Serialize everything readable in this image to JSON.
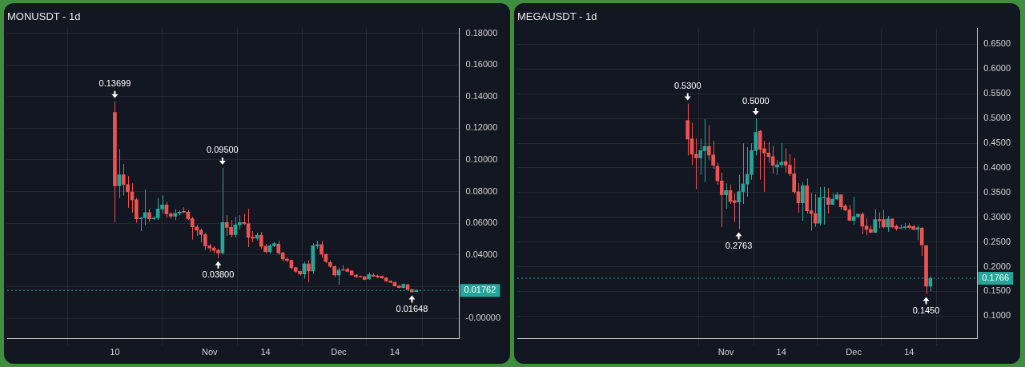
{
  "chart_data": [
    {
      "type": "candlestick",
      "title": "MONUSDT - 1d",
      "x": [
        "--10-10",
        "--10-11",
        "--10-12",
        "--10-13",
        "--10-14",
        "--10-15",
        "--10-16",
        "--10-17",
        "--10-18",
        "--10-19",
        "--10-20",
        "--10-21",
        "--10-22",
        "--10-23",
        "--10-24",
        "--10-25",
        "--10-26",
        "--10-27",
        "--10-28",
        "--10-29",
        "--10-30",
        "--10-31",
        "--11-01",
        "--11-02",
        "--11-03",
        "--11-04",
        "--11-05",
        "--11-06",
        "--11-07",
        "--11-08",
        "--11-09",
        "--11-10",
        "--11-11",
        "--11-12",
        "--11-13",
        "--11-14",
        "--11-15",
        "--11-16",
        "--11-17",
        "--11-18",
        "--11-19",
        "--11-20",
        "--11-21",
        "--11-22",
        "--11-23",
        "--11-24",
        "--11-25",
        "--11-26",
        "--11-27",
        "--11-28",
        "--11-29",
        "--11-30",
        "--12-01",
        "--12-02",
        "--12-03",
        "--12-04",
        "--12-05",
        "--12-06",
        "--12-07",
        "--12-08",
        "--12-09",
        "--12-10",
        "--12-11",
        "--12-12",
        "--12-13",
        "--12-14",
        "--12-15",
        "--12-16",
        "--12-17",
        "--12-18",
        "--12-19"
      ],
      "ohlc": [
        [
          0.13,
          0.13699,
          0.0605,
          0.0836
        ],
        [
          0.0836,
          0.1068,
          0.0759,
          0.0906
        ],
        [
          0.0906,
          0.0975,
          0.0775,
          0.0844
        ],
        [
          0.0844,
          0.0898,
          0.0698,
          0.0798
        ],
        [
          0.0798,
          0.0852,
          0.0667,
          0.0748
        ],
        [
          0.0748,
          0.076,
          0.0605,
          0.0628
        ],
        [
          0.0628,
          0.064,
          0.0551,
          0.0634
        ],
        [
          0.0634,
          0.0813,
          0.0589,
          0.0667
        ],
        [
          0.0667,
          0.069,
          0.061,
          0.0628
        ],
        [
          0.0628,
          0.0645,
          0.062,
          0.0634
        ],
        [
          0.0634,
          0.076,
          0.062,
          0.069
        ],
        [
          0.069,
          0.0775,
          0.066,
          0.0716
        ],
        [
          0.0716,
          0.0735,
          0.0636,
          0.0659
        ],
        [
          0.0659,
          0.067,
          0.063,
          0.0644
        ],
        [
          0.0644,
          0.069,
          0.062,
          0.0663
        ],
        [
          0.0663,
          0.068,
          0.065,
          0.067
        ],
        [
          0.0675,
          0.07,
          0.0665,
          0.067
        ],
        [
          0.067,
          0.068,
          0.062,
          0.0628
        ],
        [
          0.0628,
          0.064,
          0.0497,
          0.0577
        ],
        [
          0.0577,
          0.059,
          0.052,
          0.0556
        ],
        [
          0.0556,
          0.0565,
          0.048,
          0.0528
        ],
        [
          0.0528,
          0.054,
          0.043,
          0.0458
        ],
        [
          0.0458,
          0.047,
          0.042,
          0.0444
        ],
        [
          0.0444,
          0.0455,
          0.041,
          0.0429
        ],
        [
          0.0429,
          0.044,
          0.038,
          0.0412
        ],
        [
          0.0412,
          0.095,
          0.0402,
          0.0605
        ],
        [
          0.0605,
          0.065,
          0.052,
          0.0574
        ],
        [
          0.0574,
          0.062,
          0.051,
          0.0528
        ],
        [
          0.0528,
          0.064,
          0.051,
          0.059
        ],
        [
          0.059,
          0.065,
          0.056,
          0.0605
        ],
        [
          0.0605,
          0.066,
          0.059,
          0.0597
        ],
        [
          0.0597,
          0.069,
          0.045,
          0.0512
        ],
        [
          0.0512,
          0.055,
          0.048,
          0.0505
        ],
        [
          0.0505,
          0.054,
          0.049,
          0.0525
        ],
        [
          0.0525,
          0.0545,
          0.044,
          0.0455
        ],
        [
          0.0455,
          0.047,
          0.041,
          0.042
        ],
        [
          0.042,
          0.047,
          0.041,
          0.0458
        ],
        [
          0.0458,
          0.048,
          0.045,
          0.0472
        ],
        [
          0.0468,
          0.049,
          0.04,
          0.0412
        ],
        [
          0.0412,
          0.042,
          0.036,
          0.0374
        ],
        [
          0.0374,
          0.0385,
          0.0355,
          0.0366
        ],
        [
          0.0366,
          0.037,
          0.031,
          0.0319
        ],
        [
          0.0319,
          0.0325,
          0.029,
          0.0296
        ],
        [
          0.0296,
          0.03,
          0.027,
          0.0279
        ],
        [
          0.0279,
          0.0358,
          0.025,
          0.0343
        ],
        [
          0.0343,
          0.0366,
          0.0227,
          0.0299
        ],
        [
          0.0299,
          0.0474,
          0.028,
          0.0458
        ],
        [
          0.0458,
          0.0489,
          0.044,
          0.0466
        ],
        [
          0.0466,
          0.0489,
          0.038,
          0.0404
        ],
        [
          0.0404,
          0.041,
          0.035,
          0.0358
        ],
        [
          0.0352,
          0.0365,
          0.032,
          0.0327
        ],
        [
          0.0327,
          0.0335,
          0.026,
          0.0273
        ],
        [
          0.0273,
          0.032,
          0.0211,
          0.0304
        ],
        [
          0.0306,
          0.0335,
          0.03,
          0.0304
        ],
        [
          0.0309,
          0.032,
          0.029,
          0.0296
        ],
        [
          0.0299,
          0.0305,
          0.027,
          0.0273
        ],
        [
          0.0273,
          0.0278,
          0.0255,
          0.0262
        ],
        [
          0.0265,
          0.027,
          0.0258,
          0.0262
        ],
        [
          0.0262,
          0.0265,
          0.024,
          0.0245
        ],
        [
          0.0248,
          0.029,
          0.0245,
          0.0276
        ],
        [
          0.0273,
          0.0285,
          0.0262,
          0.0265
        ],
        [
          0.0268,
          0.0275,
          0.0255,
          0.026
        ],
        [
          0.0265,
          0.027,
          0.025,
          0.0255
        ],
        [
          0.0255,
          0.026,
          0.023,
          0.0235
        ],
        [
          0.0235,
          0.024,
          0.0222,
          0.0227
        ],
        [
          0.0227,
          0.0232,
          0.02,
          0.0204
        ],
        [
          0.0204,
          0.021,
          0.019,
          0.0194
        ],
        [
          0.0194,
          0.022,
          0.019,
          0.0214
        ],
        [
          0.0212,
          0.0218,
          0.0178,
          0.0181
        ],
        [
          0.0181,
          0.0185,
          0.01648,
          0.0166
        ],
        [
          0.0168,
          0.018,
          0.0165,
          0.01762
        ]
      ],
      "colors": [
        "#ef5350",
        "#26a69a",
        "#ef5350",
        "#ef5350",
        "#ef5350",
        "#ef5350",
        "#26a69a",
        "#26a69a",
        "#ef5350",
        "#26a69a",
        "#26a69a",
        "#26a69a",
        "#ef5350",
        "#ef5350",
        "#26a69a",
        "#26a69a",
        "#ef5350",
        "#ef5350",
        "#ef5350",
        "#ef5350",
        "#ef5350",
        "#ef5350",
        "#ef5350",
        "#ef5350",
        "#ef5350",
        "#26a69a",
        "#ef5350",
        "#ef5350",
        "#26a69a",
        "#26a69a",
        "#ef5350",
        "#ef5350",
        "#ef5350",
        "#26a69a",
        "#ef5350",
        "#ef5350",
        "#26a69a",
        "#26a69a",
        "#ef5350",
        "#ef5350",
        "#ef5350",
        "#ef5350",
        "#ef5350",
        "#ef5350",
        "#26a69a",
        "#ef5350",
        "#26a69a",
        "#26a69a",
        "#ef5350",
        "#ef5350",
        "#ef5350",
        "#ef5350",
        "#26a69a",
        "#ef5350",
        "#ef5350",
        "#ef5350",
        "#ef5350",
        "#ef5350",
        "#ef5350",
        "#26a69a",
        "#ef5350",
        "#ef5350",
        "#ef5350",
        "#ef5350",
        "#ef5350",
        "#ef5350",
        "#ef5350",
        "#26a69a",
        "#ef5350",
        "#ef5350",
        "#26a69a"
      ],
      "xlim": [
        "--09-15",
        "--12-29"
      ],
      "xticks": [
        {
          "value": "--10-10",
          "label": "10"
        },
        {
          "value": "--11-01",
          "label": "Nov"
        },
        {
          "value": "--11-14",
          "label": "14"
        },
        {
          "value": "--12-01",
          "label": "Dec"
        },
        {
          "value": "--12-14",
          "label": "14"
        }
      ],
      "ylim": [
        -0.013,
        0.183
      ],
      "yticks": [
        {
          "value": 0,
          "label": "-0.00000"
        },
        {
          "value": 0.02,
          "label": null
        },
        {
          "value": 0.04,
          "label": "0.04000"
        },
        {
          "value": 0.06,
          "label": "0.06000"
        },
        {
          "value": 0.08,
          "label": "0.08000"
        },
        {
          "value": 0.1,
          "label": "0.10000"
        },
        {
          "value": 0.12,
          "label": "0.12000"
        },
        {
          "value": 0.14,
          "label": "0.14000"
        },
        {
          "value": 0.16,
          "label": "0.16000"
        },
        {
          "value": 0.18,
          "label": "0.18000"
        }
      ],
      "grid": true,
      "ref_lines": [
        {
          "axis": "y",
          "value": 0.01762,
          "label": "0.01762",
          "color": "#26a69a",
          "line_style": "dotted"
        }
      ],
      "annotations": [
        {
          "text": "0.13699",
          "x": "--10-10",
          "y": 0.13699
        },
        {
          "text": "0.09500",
          "x": "--11-04",
          "y": 0.095
        },
        {
          "text": "0.03800",
          "x": "--11-03",
          "y": 0.038
        },
        {
          "text": "0.01648",
          "x": "--12-18",
          "y": 0.01648
        }
      ]
    },
    {
      "type": "candlestick",
      "title": "MEGAUSDT - 1d",
      "x": [
        "--10-23",
        "--10-24",
        "--10-25",
        "--10-26",
        "--10-27",
        "--10-28",
        "--10-29",
        "--10-30",
        "--10-31",
        "--11-01",
        "--11-02",
        "--11-03",
        "--11-04",
        "--11-05",
        "--11-06",
        "--11-07",
        "--11-08",
        "--11-09",
        "--11-10",
        "--11-11",
        "--11-12",
        "--11-13",
        "--11-14",
        "--11-15",
        "--11-16",
        "--11-17",
        "--11-18",
        "--11-19",
        "--11-20",
        "--11-21",
        "--11-22",
        "--11-23",
        "--11-24",
        "--11-25",
        "--11-26",
        "--11-27",
        "--11-28",
        "--11-29",
        "--11-30",
        "--12-01",
        "--12-02",
        "--12-03",
        "--12-04",
        "--12-05",
        "--12-06",
        "--12-07",
        "--12-08",
        "--12-09",
        "--12-10",
        "--12-11",
        "--12-12",
        "--12-13",
        "--12-14",
        "--12-15",
        "--12-16",
        "--12-17",
        "--12-18",
        "--12-19"
      ],
      "ohlc": [
        [
          0.496,
          0.53,
          0.425,
          0.4583
        ],
        [
          0.4583,
          0.4912,
          0.4054,
          0.4275
        ],
        [
          0.4275,
          0.4593,
          0.3564,
          0.4201
        ],
        [
          0.4201,
          0.4593,
          0.3858,
          0.4348
        ],
        [
          0.4348,
          0.4985,
          0.3711,
          0.4436
        ],
        [
          0.4436,
          0.4863,
          0.4152,
          0.426
        ],
        [
          0.426,
          0.4544,
          0.3981,
          0.4054
        ],
        [
          0.403,
          0.4103,
          0.3662,
          0.3736
        ],
        [
          0.3736,
          0.3907,
          0.2804,
          0.3456
        ],
        [
          0.3456,
          0.3687,
          0.3172,
          0.354
        ],
        [
          0.354,
          0.3662,
          0.327,
          0.3319
        ],
        [
          0.3338,
          0.349,
          0.2903,
          0.3295
        ],
        [
          0.3309,
          0.3858,
          0.2763,
          0.3515
        ],
        [
          0.3515,
          0.4495,
          0.327,
          0.3672
        ],
        [
          0.3672,
          0.4422,
          0.3417,
          0.3868
        ],
        [
          0.3868,
          0.4495,
          0.376,
          0.4348
        ],
        [
          0.4348,
          0.5,
          0.425,
          0.4716
        ],
        [
          0.474,
          0.4765,
          0.376,
          0.4373
        ],
        [
          0.4387,
          0.4544,
          0.3515,
          0.4299
        ],
        [
          0.4299,
          0.452,
          0.4103,
          0.4226
        ],
        [
          0.4226,
          0.4446,
          0.3883,
          0.4054
        ],
        [
          0.4015,
          0.4152,
          0.3858,
          0.4064
        ],
        [
          0.4064,
          0.4495,
          0.4005,
          0.4113
        ],
        [
          0.4128,
          0.4397,
          0.3907,
          0.4054
        ],
        [
          0.4054,
          0.4275,
          0.3834,
          0.3882
        ],
        [
          0.3882,
          0.4201,
          0.3466,
          0.3515
        ],
        [
          0.3515,
          0.3687,
          0.3099,
          0.3294
        ],
        [
          0.3294,
          0.3711,
          0.2927,
          0.3638
        ],
        [
          0.3638,
          0.3785,
          0.3074,
          0.313
        ],
        [
          0.313,
          0.3491,
          0.2731,
          0.3074
        ],
        [
          0.3074,
          0.3466,
          0.2805,
          0.2878
        ],
        [
          0.2878,
          0.3613,
          0.2829,
          0.3393
        ],
        [
          0.3393,
          0.3613,
          0.2853,
          0.3407
        ],
        [
          0.3393,
          0.3589,
          0.3074,
          0.326
        ],
        [
          0.326,
          0.3491,
          0.324,
          0.3368
        ],
        [
          0.3368,
          0.3515,
          0.3344,
          0.3456
        ],
        [
          0.3456,
          0.3466,
          0.3148,
          0.3211
        ],
        [
          0.3231,
          0.327,
          0.3123,
          0.3147
        ],
        [
          0.3147,
          0.3246,
          0.2927,
          0.2937
        ],
        [
          0.2937,
          0.3417,
          0.2853,
          0.3015
        ],
        [
          0.3015,
          0.3074,
          0.2976,
          0.3064
        ],
        [
          0.3064,
          0.3099,
          0.2657,
          0.2819
        ],
        [
          0.2819,
          0.2976,
          0.2633,
          0.2755
        ],
        [
          0.2755,
          0.2829,
          0.2682,
          0.2692
        ],
        [
          0.2692,
          0.3162,
          0.2682,
          0.2952
        ],
        [
          0.2952,
          0.3099,
          0.278,
          0.2927
        ],
        [
          0.2952,
          0.3148,
          0.278,
          0.2804
        ],
        [
          0.2804,
          0.3025,
          0.2707,
          0.2966
        ],
        [
          0.2966,
          0.2976,
          0.278,
          0.2804
        ],
        [
          0.2819,
          0.2853,
          0.2731,
          0.277
        ],
        [
          0.278,
          0.2853,
          0.2755,
          0.2789
        ],
        [
          0.2789,
          0.2878,
          0.2755,
          0.2809
        ],
        [
          0.2829,
          0.2878,
          0.277,
          0.2789
        ],
        [
          0.2814,
          0.2853,
          0.2731,
          0.2755
        ],
        [
          0.2755,
          0.2829,
          0.2535,
          0.2789
        ],
        [
          0.278,
          0.2804,
          0.2216,
          0.2437
        ],
        [
          0.2427,
          0.2427,
          0.145,
          0.1604
        ],
        [
          0.1604,
          0.18,
          0.1506,
          0.1766
        ]
      ],
      "colors": [
        "#ef5350",
        "#ef5350",
        "#ef5350",
        "#26a69a",
        "#26a69a",
        "#ef5350",
        "#ef5350",
        "#ef5350",
        "#ef5350",
        "#26a69a",
        "#ef5350",
        "#ef5350",
        "#26a69a",
        "#26a69a",
        "#26a69a",
        "#26a69a",
        "#26a69a",
        "#ef5350",
        "#ef5350",
        "#ef5350",
        "#ef5350",
        "#26a69a",
        "#26a69a",
        "#ef5350",
        "#ef5350",
        "#ef5350",
        "#ef5350",
        "#26a69a",
        "#ef5350",
        "#ef5350",
        "#ef5350",
        "#26a69a",
        "#26a69a",
        "#ef5350",
        "#26a69a",
        "#26a69a",
        "#ef5350",
        "#ef5350",
        "#ef5350",
        "#26a69a",
        "#26a69a",
        "#ef5350",
        "#ef5350",
        "#ef5350",
        "#26a69a",
        "#ef5350",
        "#ef5350",
        "#26a69a",
        "#ef5350",
        "#ef5350",
        "#26a69a",
        "#26a69a",
        "#ef5350",
        "#ef5350",
        "#26a69a",
        "#ef5350",
        "#ef5350",
        "#26a69a"
      ],
      "xlim": [
        "--09-13",
        "--12-30"
      ],
      "xticks": [
        {
          "value": "--11-01",
          "label": "Nov"
        },
        {
          "value": "--11-14",
          "label": "14"
        },
        {
          "value": "--12-01",
          "label": "Dec"
        },
        {
          "value": "--12-14",
          "label": "14"
        }
      ],
      "ylim": [
        0.054,
        0.682
      ],
      "yticks": [
        {
          "value": 0.1,
          "label": "0.1000"
        },
        {
          "value": 0.15,
          "label": "0.1500"
        },
        {
          "value": 0.2,
          "label": "0.2000"
        },
        {
          "value": 0.25,
          "label": "0.2500"
        },
        {
          "value": 0.3,
          "label": "0.3000"
        },
        {
          "value": 0.35,
          "label": "0.3500"
        },
        {
          "value": 0.4,
          "label": "0.4000"
        },
        {
          "value": 0.45,
          "label": "0.4500"
        },
        {
          "value": 0.5,
          "label": "0.5000"
        },
        {
          "value": 0.55,
          "label": "0.5500"
        },
        {
          "value": 0.6,
          "label": "0.6000"
        },
        {
          "value": 0.65,
          "label": "0.6500"
        }
      ],
      "grid": true,
      "ref_lines": [
        {
          "axis": "y",
          "value": 0.1766,
          "label": "0.1766",
          "color": "#26a69a",
          "line_style": "dotted"
        }
      ],
      "annotations": [
        {
          "text": "0.5300",
          "x": "--10-23",
          "y": 0.53
        },
        {
          "text": "0.5000",
          "x": "--11-08",
          "y": 0.5
        },
        {
          "text": "0.2763",
          "x": "--11-04",
          "y": 0.2763
        },
        {
          "text": "0.1450",
          "x": "--12-18",
          "y": 0.145
        }
      ]
    }
  ]
}
